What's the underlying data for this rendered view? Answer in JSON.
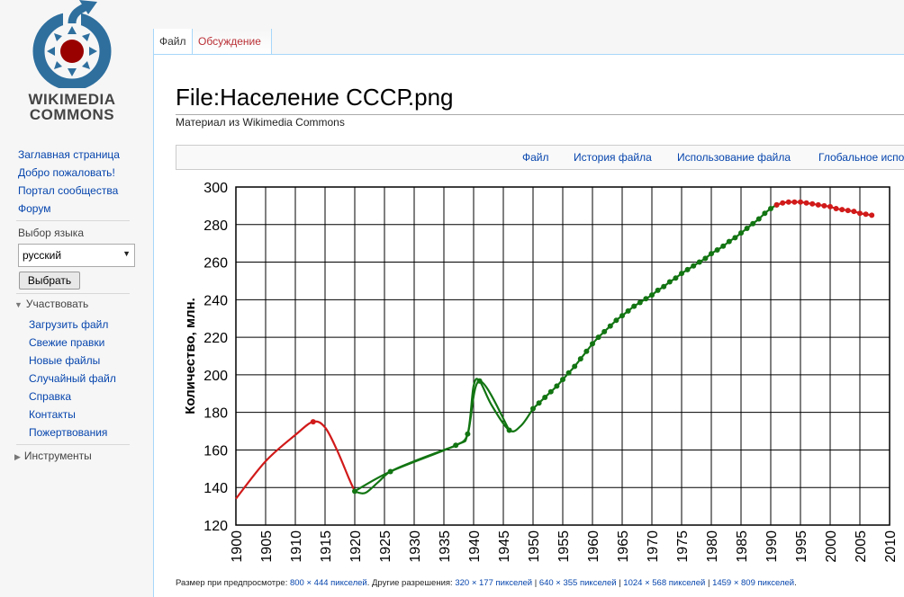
{
  "logo": {
    "line1": "WIKIMEDIA",
    "line2": "COMMONS"
  },
  "sidebar": {
    "nav": [
      "Заглавная страница",
      "Добро пожаловать!",
      "Портал сообщества",
      "Форум"
    ],
    "lang_label": "Выбор языка",
    "lang_value": "русский",
    "lang_button": "Выбрать",
    "participate_label": "Участвовать",
    "participate_items": [
      "Загрузить файл",
      "Свежие правки",
      "Новые файлы",
      "Случайный файл",
      "Справка",
      "Контакты",
      "Пожертвования"
    ],
    "tools_label": "Инструменты"
  },
  "tabs": {
    "file": "Файл",
    "discussion": "Обсуждение"
  },
  "page": {
    "title": "File:Население СССР.png",
    "subtitle": "Материал из Wikimedia Commons",
    "toc": [
      "Файл",
      "История файла",
      "Использование файла",
      "Глобальное испо"
    ]
  },
  "preview": {
    "prefix": "Размер при предпросмотре: ",
    "size": "800 × 444 пикселей",
    "others_label": ". Другие разрешения: ",
    "others": [
      "320 × 177 пикселей",
      "640 × 355 пикселей",
      "1024 × 568 пикселей",
      "1459 × 809 пикселей"
    ],
    "sep": " | ",
    "end": "."
  },
  "colors": {
    "red": "#d11a1a",
    "green": "#127512",
    "link": "#0645ad"
  },
  "chart_data": {
    "type": "line",
    "title": "",
    "xlabel": "",
    "ylabel": "Количество, млн.",
    "xlim": [
      1900,
      2010
    ],
    "ylim": [
      120,
      300
    ],
    "x_ticks": [
      1900,
      1905,
      1910,
      1915,
      1920,
      1925,
      1930,
      1935,
      1940,
      1945,
      1950,
      1955,
      1960,
      1965,
      1970,
      1975,
      1980,
      1985,
      1990,
      1995,
      2000,
      2005,
      2010
    ],
    "x_tick_labels": [
      "1900",
      "1905",
      "1910",
      "1915",
      "1920",
      "1925",
      "1930",
      "1935",
      "1940",
      "1945",
      "1950",
      "1955",
      "1960",
      "1965",
      "1970",
      "1975",
      "1980",
      "1985",
      "1990",
      "1995",
      "2000",
      "2005",
      "2010"
    ],
    "y_ticks": [
      120,
      140,
      160,
      180,
      200,
      220,
      240,
      260,
      280,
      300
    ],
    "y_tick_labels": [
      "120",
      "140",
      "160",
      "180",
      "200",
      "220",
      "240",
      "260",
      "280",
      "300"
    ],
    "grid": true,
    "legend": "none",
    "segments": [
      {
        "color": "red",
        "markers": false,
        "x": [
          1900,
          1905,
          1910,
          1913,
          1915,
          1917,
          1919,
          1920
        ],
        "y": [
          134,
          154,
          168,
          175,
          172,
          160,
          145,
          138
        ]
      },
      {
        "color": "red",
        "markers": true,
        "x": [
          1913
        ],
        "y": [
          175
        ]
      },
      {
        "color": "green",
        "markers": false,
        "x": [
          1920,
          1921,
          1922,
          1924,
          1926,
          1930,
          1935,
          1937,
          1939,
          1940,
          1941,
          1943,
          1946,
          1948,
          1950
        ],
        "y": [
          138,
          137,
          137.5,
          143,
          148.5,
          154,
          160,
          162.5,
          168.5,
          194.1,
          196.7,
          184,
          170.5,
          173,
          182
        ]
      },
      {
        "color": "green",
        "markers": true,
        "x": [
          1920,
          1926,
          1937,
          1939,
          1941,
          1946
        ],
        "y": [
          138,
          148.5,
          162.5,
          168.5,
          196.7,
          170.5
        ]
      },
      {
        "color": "green",
        "markers": true,
        "x": [
          1950,
          1951,
          1952,
          1953,
          1954,
          1955,
          1956,
          1957,
          1958,
          1959,
          1960,
          1961,
          1962,
          1963,
          1964,
          1965,
          1966,
          1967,
          1968,
          1969,
          1970,
          1971,
          1972,
          1973,
          1974,
          1975,
          1976,
          1977,
          1978,
          1979,
          1980,
          1981,
          1982,
          1983,
          1984,
          1985,
          1986,
          1987,
          1988,
          1989,
          1990,
          1991
        ],
        "y": [
          182,
          185,
          188,
          191,
          194,
          197.5,
          201,
          204.5,
          208.5,
          212.5,
          216.5,
          220,
          223,
          226,
          229,
          231.5,
          234,
          236.5,
          238.5,
          240.5,
          242.5,
          245,
          247,
          249.5,
          251.5,
          254,
          256,
          258,
          260,
          262,
          264.5,
          266.5,
          268.5,
          271,
          273,
          275.5,
          278,
          280.5,
          283,
          286,
          288.5,
          290.5
        ]
      },
      {
        "color": "red",
        "markers": true,
        "x": [
          1991,
          1992,
          1993,
          1994,
          1995,
          1996,
          1997,
          1998,
          1999,
          2000,
          2001,
          2002,
          2003,
          2004,
          2005,
          2006,
          2007
        ],
        "y": [
          290.5,
          291.5,
          292,
          292,
          292,
          291.5,
          291,
          290.5,
          290,
          289.5,
          288.5,
          288,
          287.5,
          287,
          286,
          285.5,
          285
        ]
      }
    ]
  }
}
